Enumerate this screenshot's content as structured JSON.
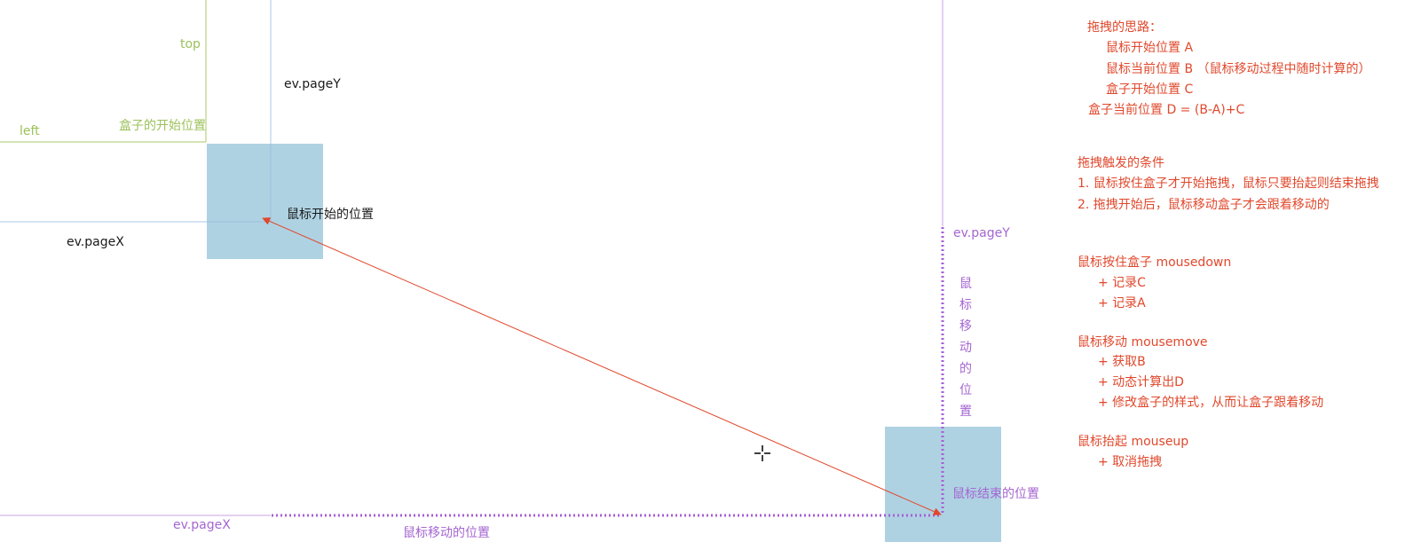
{
  "colors": {
    "green_guide": "#a9c86a",
    "blue_guide": "#a8c8e4",
    "purple_guide": "#c7a3e6",
    "purple_dots": "#a75fd8",
    "box_fill": "#aed2e2",
    "arrow": "#e0482c",
    "notes_text": "#e0482c"
  },
  "start": {
    "top_label": "top",
    "left_label": "left",
    "box_origin_label": "盒子的开始位置",
    "pageY_label": "ev.pageY",
    "pageX_label": "ev.pageX",
    "mouse_start_label": "鼠标开始的位置"
  },
  "end": {
    "pageY_label": "ev.pageY",
    "pageX_label": "ev.pageX",
    "vertical_move_label": [
      "鼠",
      "标",
      "移",
      "动",
      "的",
      "位",
      "置"
    ],
    "horizontal_move_label": "鼠标移动的位置",
    "mouse_end_label": "鼠标结束的位置"
  },
  "notes": {
    "idea_title": "拖拽的思路：",
    "idea_lines": [
      "鼠标开始位置 A",
      "鼠标当前位置 B （鼠标移动过程中随时计算的）",
      "盒子开始位置 C"
    ],
    "formula": "盒子当前位置 D = (B-A)+C",
    "trigger_title": "拖拽触发的条件",
    "trigger_lines": [
      "1. 鼠标按住盒子才开始拖拽，鼠标只要抬起则结束拖拽",
      "2. 拖拽开始后，鼠标移动盒子才会跟着移动的"
    ],
    "mousedown_title": "鼠标按住盒子  mousedown",
    "mousedown_lines": [
      "+ 记录C",
      "+ 记录A"
    ],
    "mousemove_title": "鼠标移动 mousemove",
    "mousemove_lines": [
      "+ 获取B",
      "+ 动态计算出D",
      "+ 修改盒子的样式，从而让盒子跟着移动"
    ],
    "mouseup_title": "鼠标抬起 mouseup",
    "mouseup_lines": [
      "+ 取消拖拽"
    ]
  },
  "cursor_icon": "move-crosshair-icon"
}
